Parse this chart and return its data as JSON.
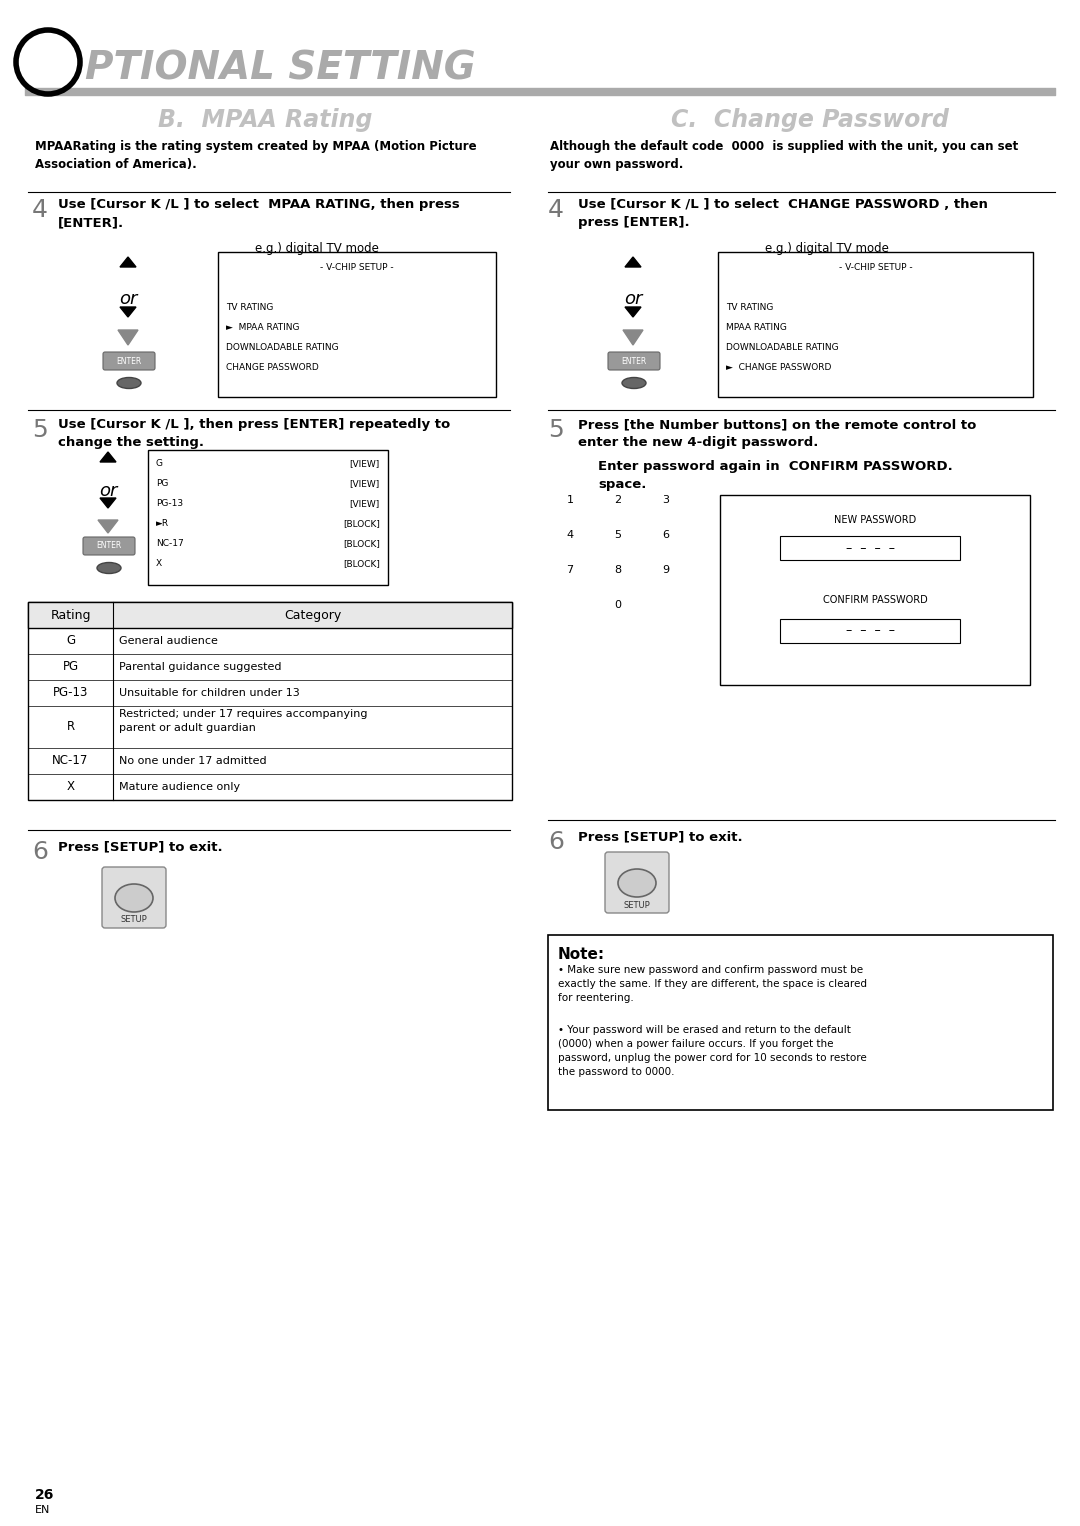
{
  "page_width": 10.8,
  "page_height": 15.26,
  "bg_color": "#ffffff",
  "header_color": "#aaaaaa",
  "section_title_color": "#bbbbbb",
  "left_desc": "MPAARating is the rating system created by MPAA (Motion Picture\nAssociation of America).",
  "right_desc": "Although the default code  0000  is supplied with the unit, you can set\nyour own password.",
  "vchip_menu_left": [
    "- V-CHIP SETUP -",
    "",
    "TV RATING",
    "►  MPAA RATING",
    "DOWNLOADABLE RATING",
    "CHANGE PASSWORD"
  ],
  "vchip_menu_right": [
    "- V-CHIP SETUP -",
    "",
    "TV RATING",
    "MPAA RATING",
    "DOWNLOADABLE RATING",
    "►  CHANGE PASSWORD"
  ],
  "rating_menu": [
    [
      "G",
      "[VIEW]"
    ],
    [
      "PG",
      "[VIEW]"
    ],
    [
      "PG-13",
      "[VIEW]"
    ],
    [
      "►R",
      "[BLOCK]"
    ],
    [
      "NC-17",
      "[BLOCK]"
    ],
    [
      "X",
      "[BLOCK]"
    ]
  ],
  "rating_table_rows": [
    [
      "G",
      "General audience"
    ],
    [
      "PG",
      "Parental guidance suggested"
    ],
    [
      "PG-13",
      "Unsuitable for children under 13"
    ],
    [
      "R",
      "Restricted; under 17 requires accompanying\nparent or adult guardian"
    ],
    [
      "NC-17",
      "No one under 17 admitted"
    ],
    [
      "X",
      "Mature audience only"
    ]
  ],
  "note_bullet1": "Make sure new password and confirm password must be\nexactly the same. If they are different, the space is cleared\nfor reentering.",
  "note_bullet2": "Your password will be erased and return to the default\n(0000) when a power failure occurs. If you forget the\npassword, unplug the power cord for 10 seconds to restore\nthe password to 0000."
}
